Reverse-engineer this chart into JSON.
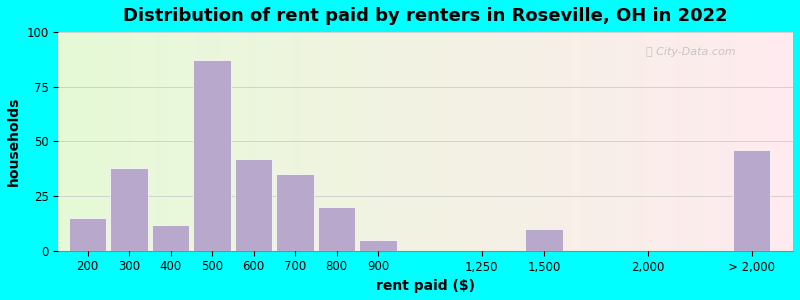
{
  "title": "Distribution of rent paid by renters in Roseville, OH in 2022",
  "xlabel": "rent paid ($)",
  "ylabel": "households",
  "bar_color": "#b8a8cc",
  "background_outer": "#00FFFF",
  "ylim": [
    0,
    100
  ],
  "yticks": [
    0,
    25,
    50,
    75,
    100
  ],
  "categories": [
    "200",
    "300",
    "400",
    "500",
    "600",
    "700",
    "800",
    "900",
    "1,250",
    "1,500",
    "2,000",
    "> 2,000"
  ],
  "values": [
    15,
    38,
    12,
    87,
    42,
    35,
    20,
    5,
    0,
    10,
    0,
    46
  ],
  "watermark": "City-Data.com",
  "title_fontsize": 13,
  "axis_label_fontsize": 10,
  "tick_fontsize": 8.5
}
